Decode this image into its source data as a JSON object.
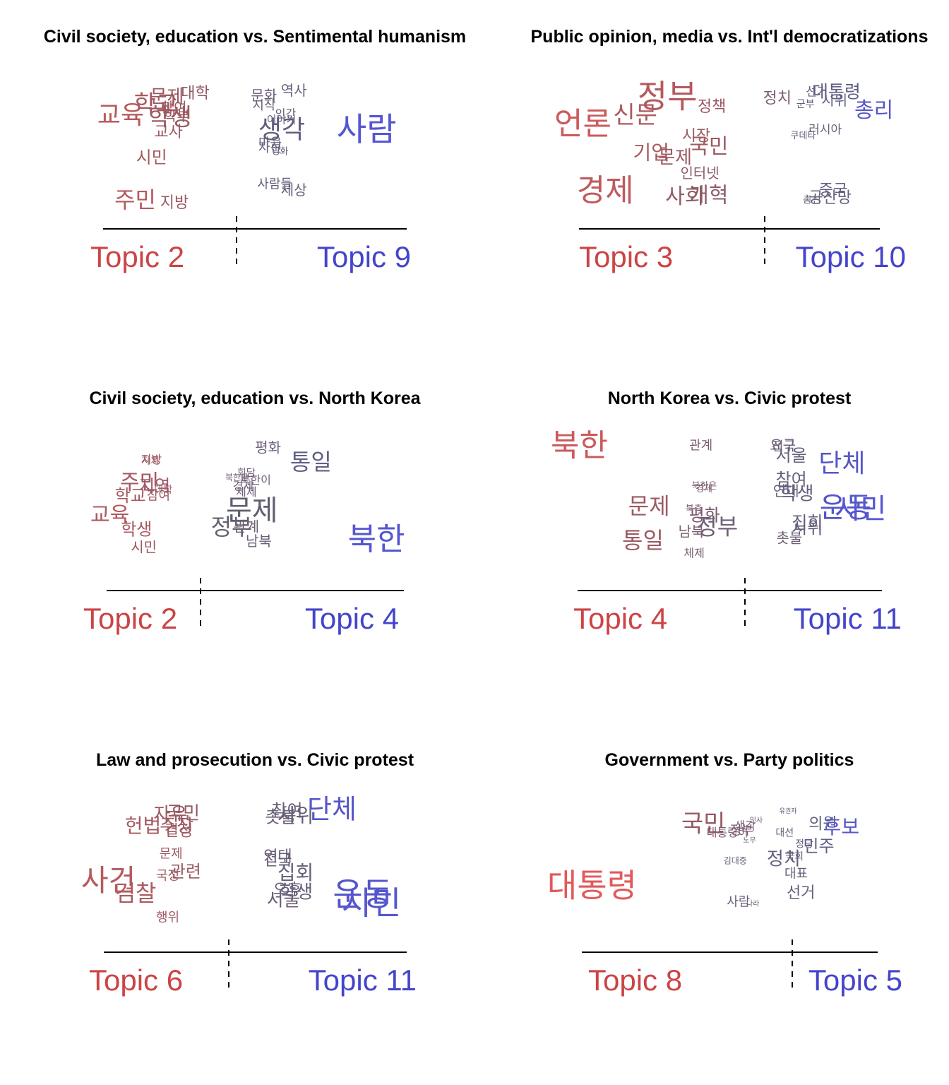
{
  "chart_data": [
    {
      "type": "scatter",
      "title": "Civil society, education vs. Sentimental humanism",
      "left_topic": "Topic 2",
      "right_topic": "Topic 9",
      "words": [
        {
          "w": "교육",
          "x": 0.02,
          "y": 0.8,
          "s": 36,
          "c": "#b85a5e"
        },
        {
          "w": "학교",
          "x": 0.15,
          "y": 0.89,
          "s": 34,
          "c": "#a8585f"
        },
        {
          "w": "학생",
          "x": 0.2,
          "y": 0.78,
          "s": 34,
          "c": "#9c5a63"
        },
        {
          "w": "문제",
          "x": 0.2,
          "y": 0.95,
          "s": 26,
          "c": "#9b5a62"
        },
        {
          "w": "참여",
          "x": 0.23,
          "y": 0.86,
          "s": 20,
          "c": "#9a5a63"
        },
        {
          "w": "대학",
          "x": 0.3,
          "y": 0.98,
          "s": 22,
          "c": "#8f5b66"
        },
        {
          "w": "학부",
          "x": 0.24,
          "y": 0.79,
          "s": 20,
          "c": "#9a5a63"
        },
        {
          "w": "교사",
          "x": 0.21,
          "y": 0.66,
          "s": 22,
          "c": "#9a5a63"
        },
        {
          "w": "시민",
          "x": 0.15,
          "y": 0.45,
          "s": 24,
          "c": "#a55961"
        },
        {
          "w": "주민",
          "x": 0.08,
          "y": 0.1,
          "s": 32,
          "c": "#b55a5e"
        },
        {
          "w": "지방",
          "x": 0.23,
          "y": 0.08,
          "s": 22,
          "c": "#9a5a63"
        },
        {
          "w": "문화",
          "x": 0.53,
          "y": 0.96,
          "s": 20,
          "c": "#6a5e78"
        },
        {
          "w": "역사",
          "x": 0.63,
          "y": 1.0,
          "s": 20,
          "c": "#655f7a"
        },
        {
          "w": "시작",
          "x": 0.53,
          "y": 0.88,
          "s": 18,
          "c": "#6a5e78"
        },
        {
          "w": "인간",
          "x": 0.6,
          "y": 0.81,
          "s": 16,
          "c": "#665f7a"
        },
        {
          "w": "이야기",
          "x": 0.59,
          "y": 0.76,
          "s": 15,
          "c": "#665f7a"
        },
        {
          "w": "생각",
          "x": 0.6,
          "y": 0.68,
          "s": 36,
          "c": "#5f5f80"
        },
        {
          "w": "마음",
          "x": 0.55,
          "y": 0.57,
          "s": 18,
          "c": "#665f7a"
        },
        {
          "w": "자신",
          "x": 0.55,
          "y": 0.53,
          "s": 18,
          "c": "#665f7a"
        },
        {
          "w": "영화",
          "x": 0.58,
          "y": 0.5,
          "s": 13,
          "c": "#665f7a"
        },
        {
          "w": "사람들",
          "x": 0.57,
          "y": 0.23,
          "s": 18,
          "c": "#665f7a"
        },
        {
          "w": "세상",
          "x": 0.63,
          "y": 0.18,
          "s": 20,
          "c": "#655f7a"
        },
        {
          "w": "사람",
          "x": 0.93,
          "y": 0.68,
          "s": 46,
          "c": "#5556d2"
        }
      ]
    },
    {
      "type": "scatter",
      "title": "Public opinion, media vs. Int'l democratizations",
      "left_topic": "Topic 3",
      "right_topic": "Topic 10",
      "words": [
        {
          "w": "언론",
          "x": 0.0,
          "y": 0.73,
          "s": 44,
          "c": "#cc5a5c"
        },
        {
          "w": "정부",
          "x": 0.3,
          "y": 0.95,
          "s": 46,
          "c": "#b55a5e"
        },
        {
          "w": "신문",
          "x": 0.2,
          "y": 0.8,
          "s": 34,
          "c": "#ad5a60"
        },
        {
          "w": "정책",
          "x": 0.46,
          "y": 0.87,
          "s": 22,
          "c": "#9b5a62"
        },
        {
          "w": "정치",
          "x": 0.67,
          "y": 0.94,
          "s": 22,
          "c": "#7b5c70"
        },
        {
          "w": "선거",
          "x": 0.79,
          "y": 0.99,
          "s": 17,
          "c": "#6c5e78"
        },
        {
          "w": "대통령",
          "x": 0.89,
          "y": 0.99,
          "s": 25,
          "c": "#5f5f85"
        },
        {
          "w": "군부",
          "x": 0.75,
          "y": 0.89,
          "s": 14,
          "c": "#665f7c"
        },
        {
          "w": "시위",
          "x": 0.85,
          "y": 0.92,
          "s": 20,
          "c": "#5f5f85"
        },
        {
          "w": "총리",
          "x": 1.0,
          "y": 0.84,
          "s": 30,
          "c": "#5556c8"
        },
        {
          "w": "시장",
          "x": 0.41,
          "y": 0.63,
          "s": 22,
          "c": "#9b5a62"
        },
        {
          "w": "국민",
          "x": 0.45,
          "y": 0.54,
          "s": 30,
          "c": "#9c5a62"
        },
        {
          "w": "러시아",
          "x": 0.83,
          "y": 0.68,
          "s": 17,
          "c": "#6c5e78"
        },
        {
          "w": "쿠데타",
          "x": 0.75,
          "y": 0.63,
          "s": 13,
          "c": "#665f7c"
        },
        {
          "w": "기업",
          "x": 0.26,
          "y": 0.49,
          "s": 28,
          "c": "#a85a60"
        },
        {
          "w": "문제",
          "x": 0.34,
          "y": 0.45,
          "s": 26,
          "c": "#9c5a62"
        },
        {
          "w": "인터넷",
          "x": 0.42,
          "y": 0.32,
          "s": 20,
          "c": "#8c5c68"
        },
        {
          "w": "경제",
          "x": 0.08,
          "y": 0.18,
          "s": 44,
          "c": "#bf5a5d"
        },
        {
          "w": "사회",
          "x": 0.37,
          "y": 0.13,
          "s": 30,
          "c": "#955b64"
        },
        {
          "w": "개혁",
          "x": 0.45,
          "y": 0.14,
          "s": 30,
          "c": "#8c5c68"
        },
        {
          "w": "중국",
          "x": 0.85,
          "y": 0.18,
          "s": 22,
          "c": "#62607e"
        },
        {
          "w": "총선",
          "x": 0.77,
          "y": 0.1,
          "s": 14,
          "c": "#6a5e78"
        },
        {
          "w": "공산당",
          "x": 0.86,
          "y": 0.12,
          "s": 22,
          "c": "#62607e"
        }
      ]
    },
    {
      "type": "scatter",
      "title": "Civil society, education vs. North Korea",
      "left_topic": "Topic 2",
      "right_topic": "Topic 4",
      "words": [
        {
          "w": "지방",
          "x": 0.16,
          "y": 0.88,
          "s": 16,
          "c": "#9b5a62"
        },
        {
          "w": "자치",
          "x": 0.16,
          "y": 0.87,
          "s": 14,
          "c": "#9b5a62"
        },
        {
          "w": "주민",
          "x": 0.1,
          "y": 0.69,
          "s": 30,
          "c": "#a55961"
        },
        {
          "w": "지역",
          "x": 0.16,
          "y": 0.66,
          "s": 24,
          "c": "#a0596f"
        },
        {
          "w": "대학",
          "x": 0.2,
          "y": 0.63,
          "s": 14,
          "c": "#9b5a62"
        },
        {
          "w": "학교",
          "x": 0.08,
          "y": 0.58,
          "s": 24,
          "c": "#a55961"
        },
        {
          "w": "참여",
          "x": 0.18,
          "y": 0.58,
          "s": 18,
          "c": "#9b5a62"
        },
        {
          "w": "교육",
          "x": 0.0,
          "y": 0.42,
          "s": 30,
          "c": "#b0595e"
        },
        {
          "w": "학생",
          "x": 0.1,
          "y": 0.3,
          "s": 24,
          "c": "#a55961"
        },
        {
          "w": "시민",
          "x": 0.13,
          "y": 0.15,
          "s": 20,
          "c": "#9b5a62"
        },
        {
          "w": "평화",
          "x": 0.53,
          "y": 0.98,
          "s": 20,
          "c": "#6a5e78"
        },
        {
          "w": "통일",
          "x": 0.68,
          "y": 0.86,
          "s": 32,
          "c": "#5f5f85"
        },
        {
          "w": "회담",
          "x": 0.46,
          "y": 0.77,
          "s": 14,
          "c": "#6e5e76"
        },
        {
          "w": "북한군",
          "x": 0.43,
          "y": 0.73,
          "s": 12,
          "c": "#6e5e76"
        },
        {
          "w": "북한이",
          "x": 0.49,
          "y": 0.71,
          "s": 16,
          "c": "#6e5e76"
        },
        {
          "w": "경제",
          "x": 0.45,
          "y": 0.66,
          "s": 16,
          "c": "#6e5e76"
        },
        {
          "w": "체제",
          "x": 0.46,
          "y": 0.61,
          "s": 16,
          "c": "#6e5e76"
        },
        {
          "w": "문제",
          "x": 0.48,
          "y": 0.46,
          "s": 40,
          "c": "#5f5f70"
        },
        {
          "w": "정부",
          "x": 0.41,
          "y": 0.32,
          "s": 32,
          "c": "#66606e"
        },
        {
          "w": "관계",
          "x": 0.46,
          "y": 0.32,
          "s": 20,
          "c": "#6e5e76"
        },
        {
          "w": "남북",
          "x": 0.5,
          "y": 0.2,
          "s": 20,
          "c": "#6a5e78"
        },
        {
          "w": "북한",
          "x": 0.93,
          "y": 0.22,
          "s": 44,
          "c": "#5556d2"
        }
      ]
    },
    {
      "type": "scatter",
      "title": "North Korea vs. Civic protest",
      "left_topic": "Topic 4",
      "right_topic": "Topic 11",
      "words": [
        {
          "w": "북한",
          "x": 0.0,
          "y": 1.0,
          "s": 44,
          "c": "#cc5a5c"
        },
        {
          "w": "관계",
          "x": 0.42,
          "y": 1.0,
          "s": 18,
          "c": "#7b5c70"
        },
        {
          "w": "요구",
          "x": 0.67,
          "y": 1.0,
          "s": 20,
          "c": "#6c5e78"
        },
        {
          "w": "전국",
          "x": 0.67,
          "y": 0.99,
          "s": 18,
          "c": "#6c5e78"
        },
        {
          "w": "서울",
          "x": 0.7,
          "y": 0.92,
          "s": 24,
          "c": "#655f7a"
        },
        {
          "w": "단체",
          "x": 0.88,
          "y": 0.86,
          "s": 36,
          "c": "#5556c8"
        },
        {
          "w": "참여",
          "x": 0.7,
          "y": 0.73,
          "s": 24,
          "c": "#655f7a"
        },
        {
          "w": "연대",
          "x": 0.68,
          "y": 0.64,
          "s": 20,
          "c": "#655f7a"
        },
        {
          "w": "학생",
          "x": 0.72,
          "y": 0.62,
          "s": 26,
          "c": "#62607e"
        },
        {
          "w": "운동",
          "x": 0.9,
          "y": 0.51,
          "s": 40,
          "c": "#5556c8"
        },
        {
          "w": "시민",
          "x": 0.95,
          "y": 0.5,
          "s": 40,
          "c": "#5556d2"
        },
        {
          "w": "북한은",
          "x": 0.43,
          "y": 0.68,
          "s": 13,
          "c": "#7b5c70"
        },
        {
          "w": "경제",
          "x": 0.43,
          "y": 0.66,
          "s": 13,
          "c": "#7b5c70"
        },
        {
          "w": "문제",
          "x": 0.25,
          "y": 0.52,
          "s": 32,
          "c": "#9c5a62"
        },
        {
          "w": "북측",
          "x": 0.4,
          "y": 0.5,
          "s": 13,
          "c": "#7b5c70"
        },
        {
          "w": "평화",
          "x": 0.43,
          "y": 0.45,
          "s": 24,
          "c": "#7b5c70"
        },
        {
          "w": "정부",
          "x": 0.47,
          "y": 0.36,
          "s": 32,
          "c": "#6e5e76"
        },
        {
          "w": "남북",
          "x": 0.39,
          "y": 0.32,
          "s": 20,
          "c": "#7b5c70"
        },
        {
          "w": "집회",
          "x": 0.75,
          "y": 0.39,
          "s": 24,
          "c": "#655f7a"
        },
        {
          "w": "시위",
          "x": 0.75,
          "y": 0.35,
          "s": 24,
          "c": "#655f7a"
        },
        {
          "w": "촛불",
          "x": 0.69,
          "y": 0.27,
          "s": 20,
          "c": "#6c5e78"
        },
        {
          "w": "통일",
          "x": 0.23,
          "y": 0.25,
          "s": 32,
          "c": "#9c5a62"
        },
        {
          "w": "체제",
          "x": 0.4,
          "y": 0.15,
          "s": 16,
          "c": "#7b5c70"
        }
      ]
    },
    {
      "type": "scatter",
      "title": "Law and prosecution vs. Civic protest",
      "left_topic": "Topic 6",
      "right_topic": "Topic 11",
      "words": [
        {
          "w": "자유",
          "x": 0.23,
          "y": 0.93,
          "s": 26,
          "c": "#9c5a62"
        },
        {
          "w": "국민",
          "x": 0.27,
          "y": 0.94,
          "s": 26,
          "c": "#955b64"
        },
        {
          "w": "헌법",
          "x": 0.14,
          "y": 0.84,
          "s": 28,
          "c": "#a55961"
        },
        {
          "w": "주장",
          "x": 0.25,
          "y": 0.84,
          "s": 26,
          "c": "#9c5a62"
        },
        {
          "w": "결정",
          "x": 0.26,
          "y": 0.8,
          "s": 22,
          "c": "#9c5a62"
        },
        {
          "w": "참여",
          "x": 0.6,
          "y": 0.96,
          "s": 24,
          "c": "#6a5e78"
        },
        {
          "w": "촛불",
          "x": 0.58,
          "y": 0.91,
          "s": 24,
          "c": "#6a5e78"
        },
        {
          "w": "시위",
          "x": 0.63,
          "y": 0.92,
          "s": 28,
          "c": "#655f7a"
        },
        {
          "w": "단체",
          "x": 0.76,
          "y": 0.97,
          "s": 38,
          "c": "#5556c8"
        },
        {
          "w": "문제",
          "x": 0.24,
          "y": 0.62,
          "s": 18,
          "c": "#9c5a62"
        },
        {
          "w": "연대",
          "x": 0.57,
          "y": 0.6,
          "s": 22,
          "c": "#6a5e78"
        },
        {
          "w": "전국",
          "x": 0.57,
          "y": 0.57,
          "s": 22,
          "c": "#6a5e78"
        },
        {
          "w": "관련",
          "x": 0.28,
          "y": 0.48,
          "s": 24,
          "c": "#955b64"
        },
        {
          "w": "국정",
          "x": 0.23,
          "y": 0.45,
          "s": 18,
          "c": "#9c5a62"
        },
        {
          "w": "집회",
          "x": 0.63,
          "y": 0.47,
          "s": 28,
          "c": "#655f7a"
        },
        {
          "w": "사건",
          "x": 0.0,
          "y": 0.41,
          "s": 42,
          "c": "#b55a5e"
        },
        {
          "w": "오후",
          "x": 0.6,
          "y": 0.34,
          "s": 22,
          "c": "#6a5e78"
        },
        {
          "w": "학생",
          "x": 0.63,
          "y": 0.32,
          "s": 26,
          "c": "#655f7a"
        },
        {
          "w": "서울",
          "x": 0.59,
          "y": 0.26,
          "s": 26,
          "c": "#6a5e78"
        },
        {
          "w": "검찰",
          "x": 0.11,
          "y": 0.31,
          "s": 32,
          "c": "#ad5a60"
        },
        {
          "w": "운동",
          "x": 0.88,
          "y": 0.3,
          "s": 46,
          "c": "#5556c8"
        },
        {
          "w": "시민",
          "x": 0.91,
          "y": 0.23,
          "s": 46,
          "c": "#5556d2"
        },
        {
          "w": "행위",
          "x": 0.23,
          "y": 0.12,
          "s": 18,
          "c": "#9c5a62"
        }
      ]
    },
    {
      "type": "scatter",
      "title": "Government vs. Party politics",
      "left_topic": "Topic 8",
      "right_topic": "Topic 5",
      "words": [
        {
          "w": "국민",
          "x": 0.45,
          "y": 0.84,
          "s": 34,
          "c": "#955b64"
        },
        {
          "w": "대통령이",
          "x": 0.53,
          "y": 0.76,
          "s": 16,
          "c": "#7b5c70"
        },
        {
          "w": "정부",
          "x": 0.57,
          "y": 0.78,
          "s": 18,
          "c": "#7b5c70"
        },
        {
          "w": "생각",
          "x": 0.58,
          "y": 0.82,
          "s": 16,
          "c": "#7b5c70"
        },
        {
          "w": "인사",
          "x": 0.61,
          "y": 0.87,
          "s": 10,
          "c": "#6c5e78"
        },
        {
          "w": "유권자",
          "x": 0.71,
          "y": 0.95,
          "s": 9,
          "c": "#655f7a"
        },
        {
          "w": "대선",
          "x": 0.7,
          "y": 0.76,
          "s": 14,
          "c": "#6c5e78"
        },
        {
          "w": "의원",
          "x": 0.83,
          "y": 0.84,
          "s": 22,
          "c": "#62607e"
        },
        {
          "w": "후보",
          "x": 0.9,
          "y": 0.81,
          "s": 28,
          "c": "#5556c8"
        },
        {
          "w": "노무",
          "x": 0.59,
          "y": 0.69,
          "s": 10,
          "c": "#6c5e78"
        },
        {
          "w": "정당",
          "x": 0.76,
          "y": 0.66,
          "s": 14,
          "c": "#655f7a"
        },
        {
          "w": "민주",
          "x": 0.82,
          "y": 0.64,
          "s": 24,
          "c": "#5f5f85"
        },
        {
          "w": "국회",
          "x": 0.73,
          "y": 0.55,
          "s": 14,
          "c": "#655f7a"
        },
        {
          "w": "정치",
          "x": 0.71,
          "y": 0.53,
          "s": 26,
          "c": "#62607e"
        },
        {
          "w": "김대중",
          "x": 0.55,
          "y": 0.51,
          "s": 12,
          "c": "#6c5e78"
        },
        {
          "w": "대표",
          "x": 0.74,
          "y": 0.4,
          "s": 18,
          "c": "#655f7a"
        },
        {
          "w": "대통령",
          "x": 0.0,
          "y": 0.29,
          "s": 46,
          "c": "#e2595a"
        },
        {
          "w": "선거",
          "x": 0.76,
          "y": 0.23,
          "s": 22,
          "c": "#655f7a"
        },
        {
          "w": "사람",
          "x": 0.56,
          "y": 0.15,
          "s": 18,
          "c": "#6c5e78"
        },
        {
          "w": "나라",
          "x": 0.6,
          "y": 0.13,
          "s": 10,
          "c": "#6c5e78"
        }
      ]
    }
  ],
  "colors": {
    "left_topic": "#cc4444",
    "right_topic": "#4444cc",
    "axis": "#000000"
  }
}
